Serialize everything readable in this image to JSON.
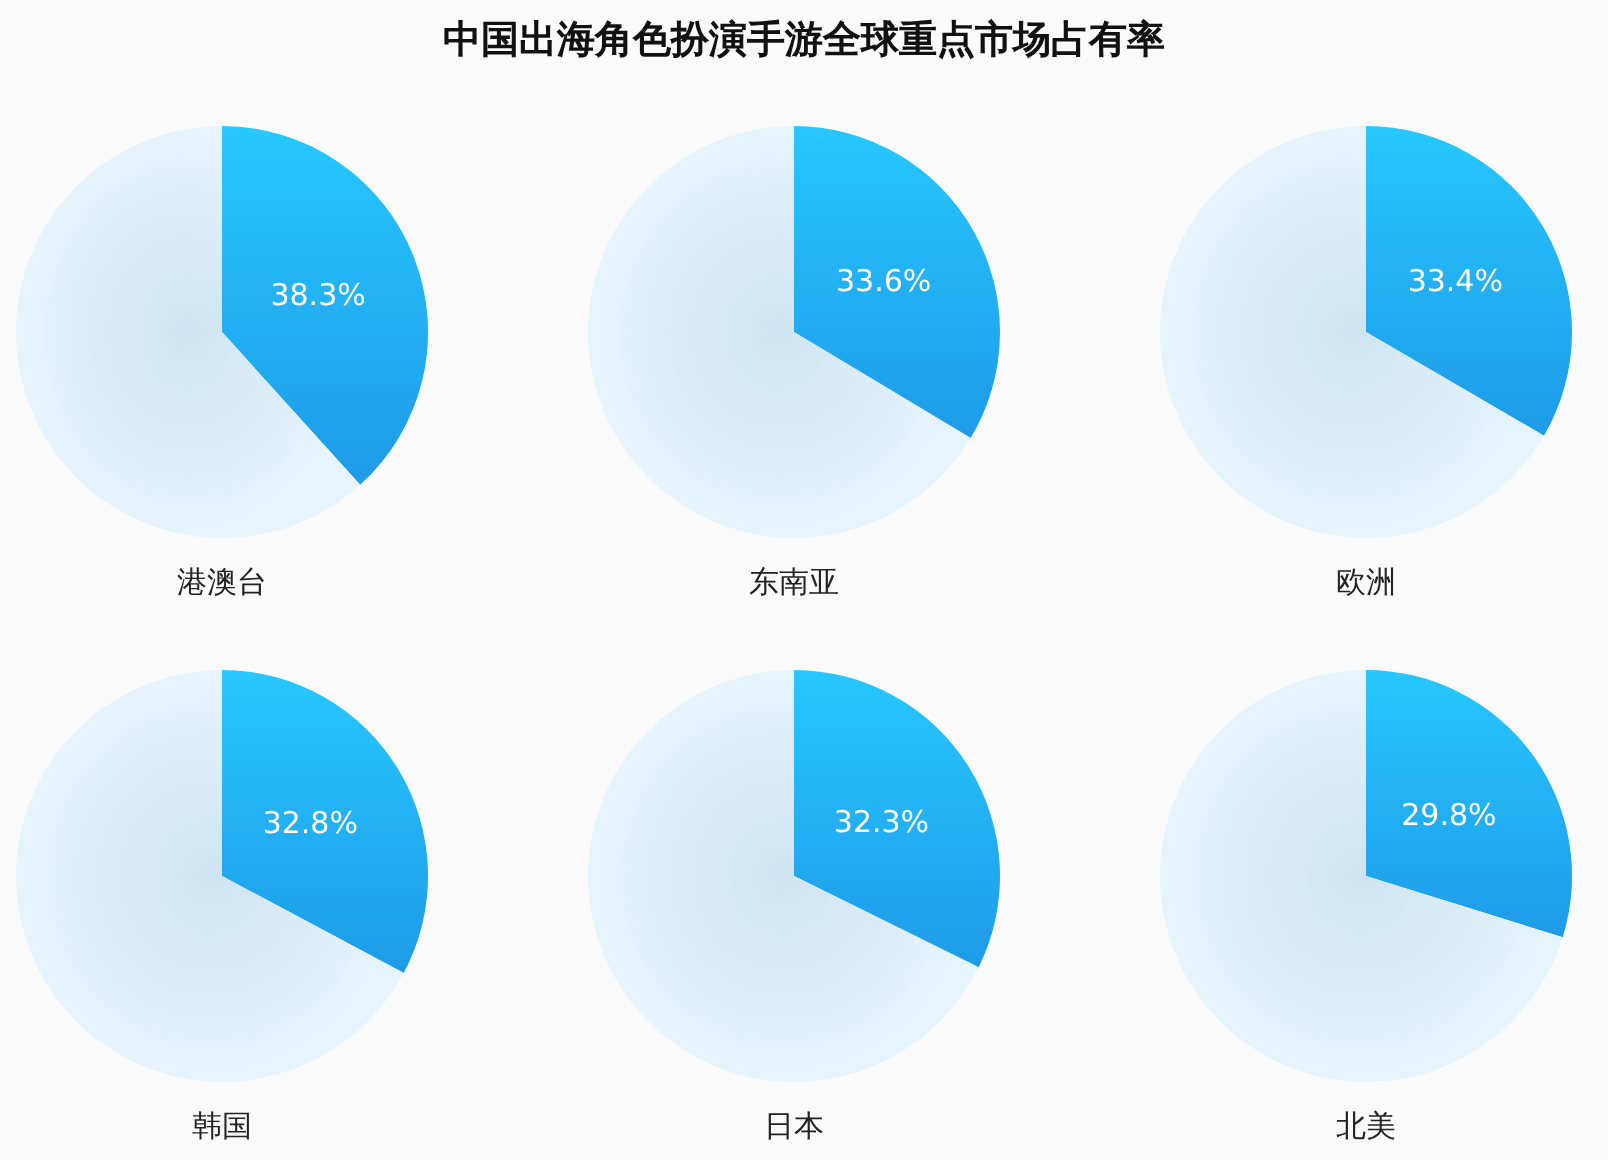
{
  "chart_data": [
    {
      "type": "other",
      "title": "中国出海角色扮演手游全球重点市场占有率"
    },
    {
      "type": "pie",
      "xlabel": "港澳台",
      "categories": [
        null,
        null
      ],
      "values": [
        38.3,
        61.7
      ],
      "colors": [
        "#1e9be8",
        "#d6ecfb"
      ],
      "value_labels": [
        "38.3%",
        null
      ]
    },
    {
      "type": "pie",
      "xlabel": "东南亚",
      "categories": [
        null,
        null
      ],
      "values": [
        33.6,
        66.4
      ],
      "colors": [
        "#1e9be8",
        "#d6ecfb"
      ],
      "value_labels": [
        "33.6%",
        null
      ]
    },
    {
      "type": "pie",
      "xlabel": "欧洲",
      "categories": [
        null,
        null
      ],
      "values": [
        33.4,
        66.6
      ],
      "colors": [
        "#1e9be8",
        "#d6ecfb"
      ],
      "value_labels": [
        "33.4%",
        null
      ]
    },
    {
      "type": "pie",
      "xlabel": "韩国",
      "categories": [
        null,
        null
      ],
      "values": [
        32.8,
        67.2
      ],
      "colors": [
        "#1e9be8",
        "#d6ecfb"
      ],
      "value_labels": [
        "32.8%",
        null
      ]
    },
    {
      "type": "pie",
      "xlabel": "日本",
      "categories": [
        null,
        null
      ],
      "values": [
        32.3,
        67.7
      ],
      "colors": [
        "#1e9be8",
        "#d6ecfb"
      ],
      "value_labels": [
        "32.3%",
        null
      ]
    },
    {
      "type": "pie",
      "xlabel": "北美",
      "categories": [
        null,
        null
      ],
      "values": [
        29.8,
        70.2
      ],
      "colors": [
        "#1e9be8",
        "#d6ecfb"
      ],
      "value_labels": [
        "29.8%",
        null
      ]
    }
  ]
}
